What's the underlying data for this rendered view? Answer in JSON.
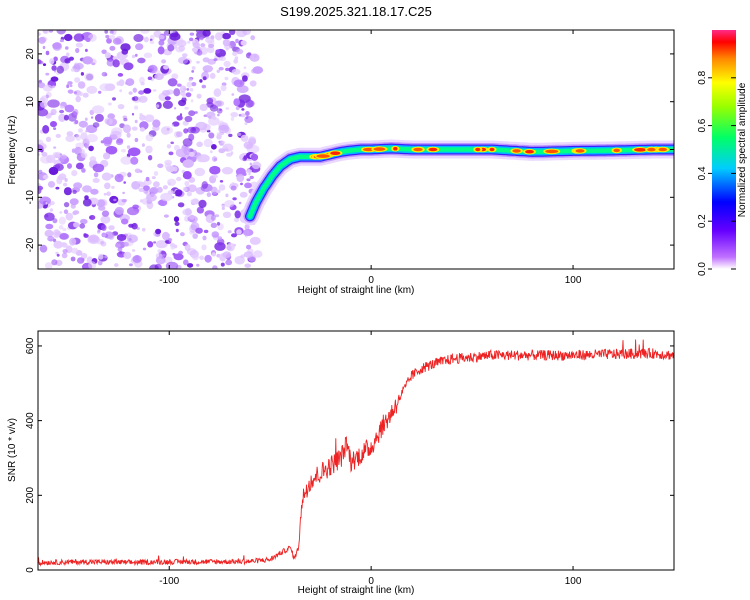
{
  "title": "S199.2025.321.18.17.C25",
  "chart_data": [
    {
      "type": "heatmap",
      "name": "spectrogram",
      "xlabel": "Height of straight line (km)",
      "ylabel": "Frequency (Hz)",
      "xlim": [
        -165,
        150
      ],
      "ylim": [
        -25,
        25
      ],
      "x_ticks": [
        -100,
        0,
        100
      ],
      "y_ticks": [
        -20,
        -10,
        0,
        10,
        20
      ],
      "colorbar": {
        "label": "Normalized spectral amplitude",
        "ticks": [
          0.0,
          0.2,
          0.4,
          0.6,
          0.8
        ],
        "range": [
          0,
          1
        ]
      },
      "ridge": {
        "x": [
          -60,
          -57,
          -53,
          -49,
          -45,
          -40,
          -35,
          -30,
          -25,
          -20,
          -15,
          -10,
          -5,
          0,
          10,
          20,
          40,
          60,
          80,
          100,
          120,
          140,
          150
        ],
        "y": [
          -14,
          -11,
          -8,
          -5.5,
          -3.5,
          -2,
          -1.5,
          -1.5,
          -1.5,
          -1,
          -0.5,
          -0.2,
          0,
          0,
          0.2,
          0,
          0,
          0,
          -0.5,
          -0.3,
          -0.2,
          0,
          0
        ]
      },
      "noise_region": {
        "x_from": -165,
        "x_to": -60
      }
    },
    {
      "type": "line",
      "name": "snr",
      "xlabel": "Height of straight line (km)",
      "ylabel": "SNR (10 * v/v)",
      "xlim": [
        -165,
        150
      ],
      "ylim": [
        0,
        640
      ],
      "x_ticks": [
        -100,
        0,
        100
      ],
      "y_ticks": [
        0,
        200,
        400,
        600
      ],
      "color": "#ee2222",
      "series": [
        {
          "name": "SNR",
          "x": [
            -165,
            -140,
            -120,
            -100,
            -80,
            -60,
            -50,
            -45,
            -40,
            -38,
            -36,
            -35,
            -33,
            -30,
            -25,
            -20,
            -15,
            -12,
            -10,
            -5,
            0,
            5,
            10,
            15,
            20,
            25,
            30,
            40,
            50,
            60,
            80,
            100,
            120,
            140,
            150
          ],
          "y": [
            20,
            22,
            20,
            22,
            22,
            23,
            28,
            45,
            60,
            30,
            60,
            150,
            210,
            240,
            260,
            280,
            300,
            340,
            290,
            310,
            330,
            380,
            420,
            470,
            520,
            540,
            550,
            565,
            570,
            575,
            575,
            575,
            578,
            580,
            575
          ]
        }
      ]
    }
  ]
}
